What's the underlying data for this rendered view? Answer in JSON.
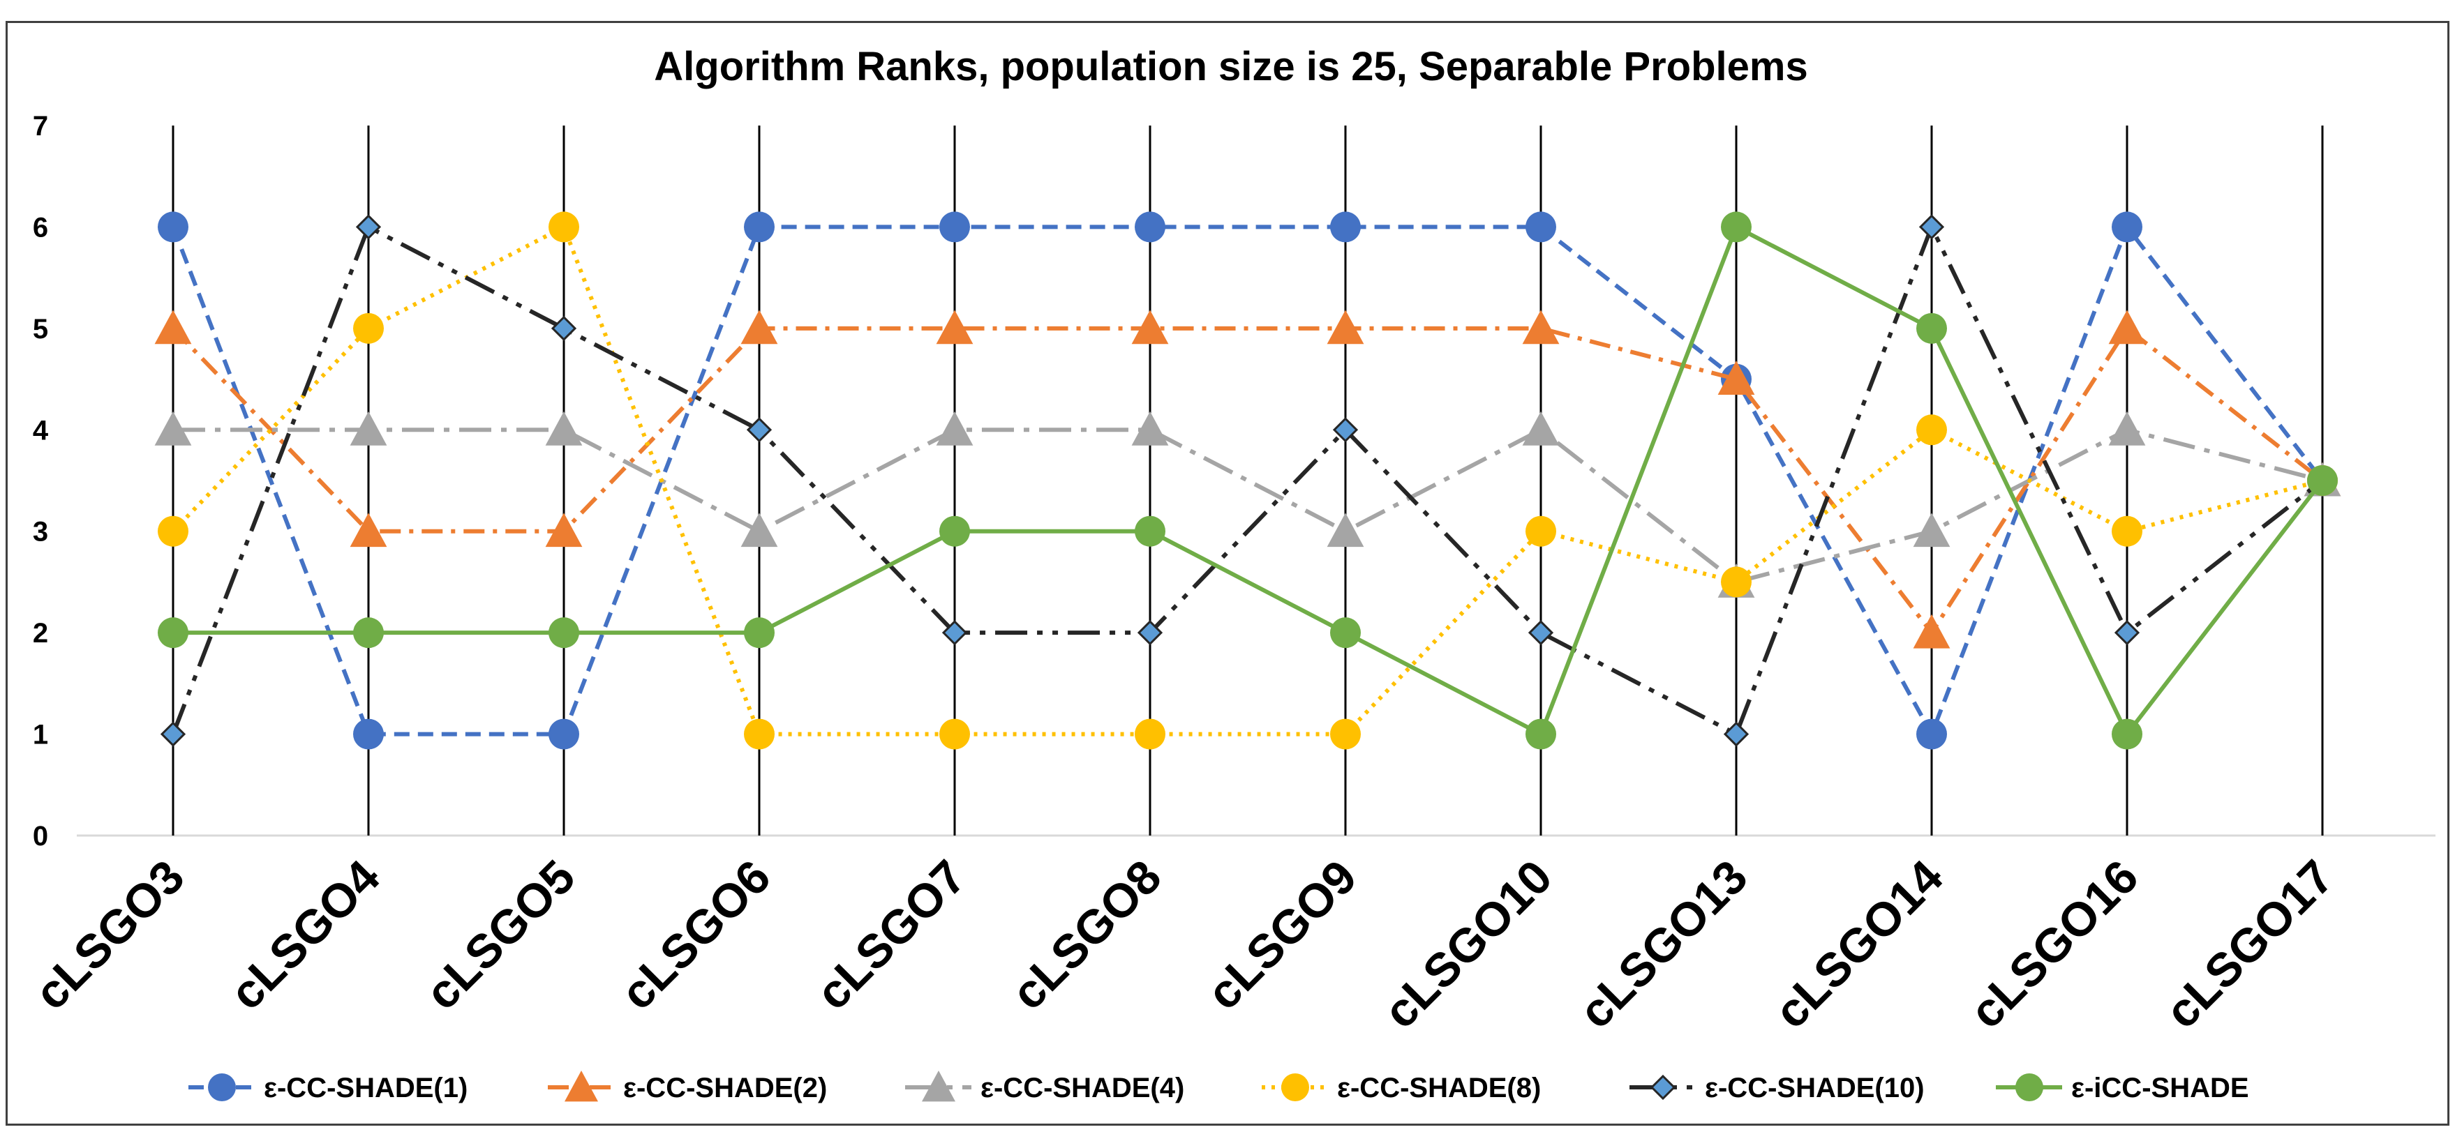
{
  "chart_data": {
    "type": "line",
    "title": "Algorithm Ranks, population size is 25, Separable Problems",
    "xlabel": "",
    "ylabel": "",
    "ylim": [
      0,
      7
    ],
    "yticks": [
      "0",
      "1",
      "2",
      "3",
      "4",
      "5",
      "6",
      "7"
    ],
    "categories": [
      "cLSGO3",
      "cLSGO4",
      "cLSGO5",
      "cLSGO6",
      "cLSGO7",
      "cLSGO8",
      "cLSGO9",
      "cLSGO10",
      "cLSGO13",
      "cLSGO14",
      "cLSGO16",
      "cLSGO17"
    ],
    "legend_position": "bottom",
    "grid": "vertical",
    "series": [
      {
        "name": "ε-CC-SHADE(1)",
        "color": "#4472C4",
        "dash": "dashed",
        "marker": "circle",
        "values": [
          6,
          1,
          1,
          6,
          6,
          6,
          6,
          6,
          4.5,
          1,
          6,
          3.5
        ]
      },
      {
        "name": "ε-CC-SHADE(2)",
        "color": "#ED7D31",
        "dash": "dash-dot",
        "marker": "triangle",
        "values": [
          5,
          3,
          3,
          5,
          5,
          5,
          5,
          5,
          4.5,
          2,
          5,
          3.5
        ]
      },
      {
        "name": "ε-CC-SHADE(4)",
        "color": "#A5A5A5",
        "dash": "long-dash-dot",
        "marker": "triangle",
        "values": [
          4,
          4,
          4,
          3,
          4,
          4,
          3,
          4,
          2.5,
          3,
          4,
          3.5
        ]
      },
      {
        "name": "ε-CC-SHADE(8)",
        "color": "#FFC000",
        "dash": "dotted",
        "marker": "circle",
        "values": [
          3,
          5,
          6,
          1,
          1,
          1,
          1,
          3,
          2.5,
          4,
          3,
          3.5
        ]
      },
      {
        "name": "ε-CC-SHADE(10)",
        "color": "#262626",
        "dash": "long-dash-dot-dot",
        "marker": "diamond",
        "values": [
          1,
          6,
          5,
          4,
          2,
          2,
          4,
          2,
          1,
          6,
          2,
          3.5
        ]
      },
      {
        "name": "ε-iCC-SHADE",
        "color": "#70AD47",
        "dash": "solid",
        "marker": "circle",
        "values": [
          2,
          2,
          2,
          2,
          3,
          3,
          2,
          1,
          6,
          5,
          1,
          3.5
        ]
      }
    ]
  }
}
